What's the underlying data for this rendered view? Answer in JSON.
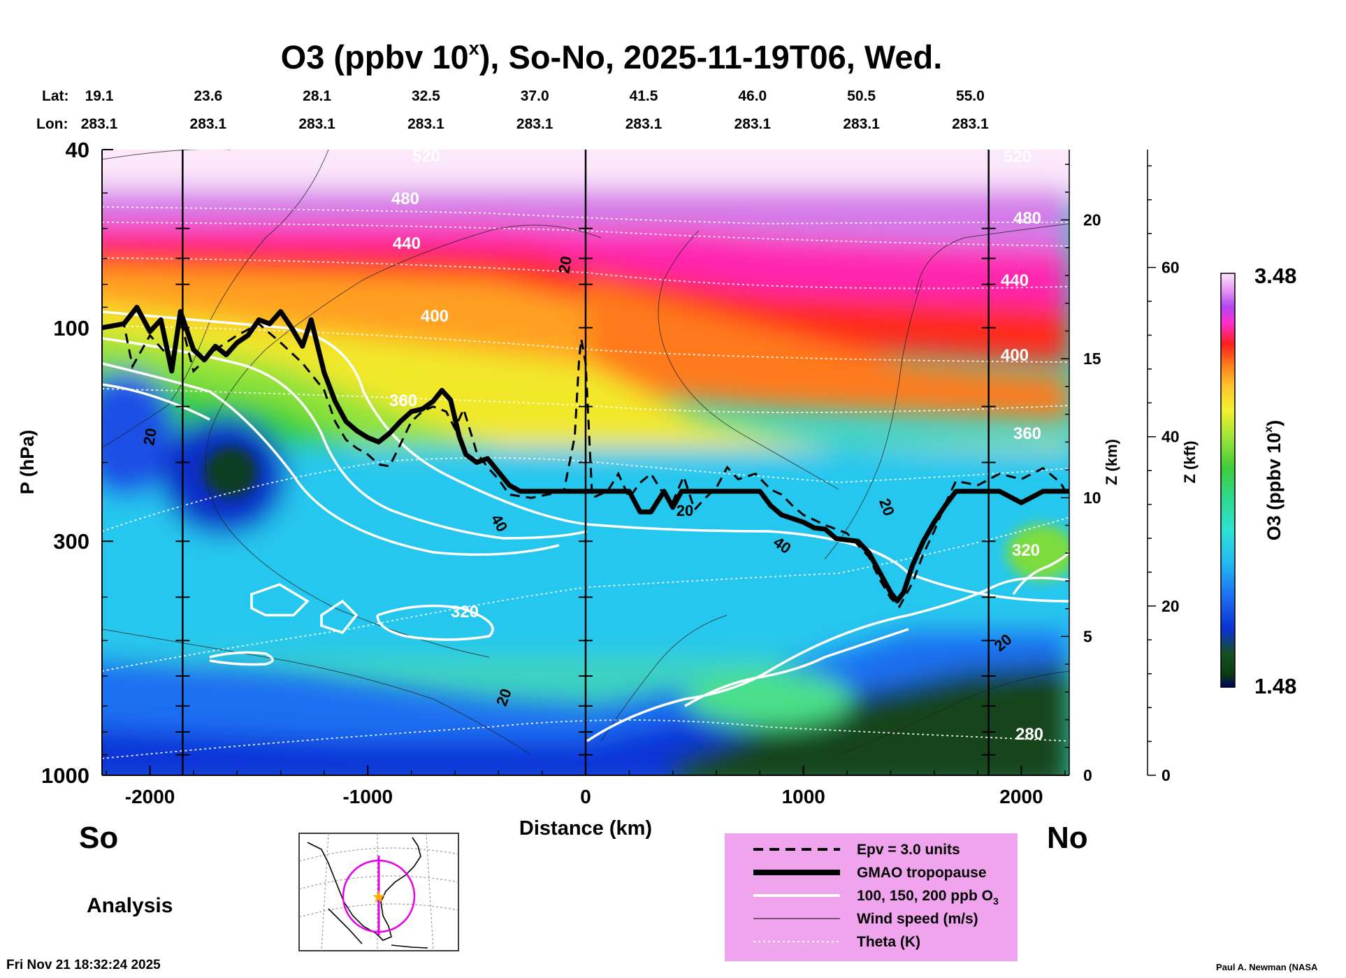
{
  "chart_data": {
    "type": "heatmap",
    "title": "O3 (ppbv 10",
    "title_sup": "x",
    "title_suffix": "), So-No, 2025-11-19T06, Wed.",
    "lat_label": "Lat:",
    "lon_label": "Lon:",
    "lat_values": [
      "19.1",
      "23.6",
      "28.1",
      "32.5",
      "37.0",
      "41.5",
      "46.0",
      "50.5",
      "55.0"
    ],
    "lon_values": [
      "283.1",
      "283.1",
      "283.1",
      "283.1",
      "283.1",
      "283.1",
      "283.1",
      "283.1",
      "283.1"
    ],
    "xlabel": "Distance (km)",
    "xlim": [
      -2220,
      2220
    ],
    "x_ticks": [
      -2000,
      -1000,
      0,
      1000,
      2000
    ],
    "x_tick_labels": [
      "-2000",
      "-1000",
      "0",
      "1000",
      "2000"
    ],
    "ylabel": "P (hPa)",
    "ylim": [
      1000,
      40
    ],
    "y_scale": "log",
    "y_ticks": [
      40,
      100,
      300,
      1000
    ],
    "y_tick_labels": [
      "40",
      "100",
      "300",
      "1000"
    ],
    "z_km_label": "Z (km)",
    "z_km_ticks": [
      "0",
      "5",
      "10",
      "15",
      "20"
    ],
    "z_kft_label": "Z (kft)",
    "z_kft_ticks": [
      "0",
      "20",
      "40",
      "60"
    ],
    "left_end_label": "So",
    "right_end_label": "No",
    "analysis_label": "Analysis",
    "colorbar": {
      "label": "O3 (ppbv 10",
      "label_sup": "x",
      "label_suffix": ")",
      "max_label": "3.48",
      "min_label": "1.48",
      "min": 1.48,
      "max": 3.48
    },
    "theta_labels": [
      "520",
      "480",
      "440",
      "400",
      "360",
      "320",
      "280",
      "520",
      "480",
      "440",
      "400",
      "360",
      "320"
    ],
    "wind_labels": [
      "20",
      "20",
      "40",
      "20",
      "20",
      "40",
      "20",
      "20"
    ],
    "tropopause_hpa": [
      [
        -2220,
        100
      ],
      [
        -2120,
        98
      ],
      [
        -2060,
        90
      ],
      [
        -2000,
        102
      ],
      [
        -1950,
        96
      ],
      [
        -1900,
        125
      ],
      [
        -1860,
        92
      ],
      [
        -1800,
        112
      ],
      [
        -1750,
        118
      ],
      [
        -1700,
        110
      ],
      [
        -1650,
        115
      ],
      [
        -1600,
        108
      ],
      [
        -1550,
        104
      ],
      [
        -1500,
        96
      ],
      [
        -1450,
        98
      ],
      [
        -1400,
        92
      ],
      [
        -1350,
        100
      ],
      [
        -1300,
        110
      ],
      [
        -1260,
        96
      ],
      [
        -1200,
        126
      ],
      [
        -1150,
        146
      ],
      [
        -1100,
        162
      ],
      [
        -1050,
        170
      ],
      [
        -1000,
        176
      ],
      [
        -950,
        180
      ],
      [
        -900,
        172
      ],
      [
        -850,
        162
      ],
      [
        -800,
        154
      ],
      [
        -750,
        152
      ],
      [
        -700,
        146
      ],
      [
        -660,
        138
      ],
      [
        -620,
        145
      ],
      [
        -580,
        175
      ],
      [
        -550,
        192
      ],
      [
        -500,
        200
      ],
      [
        -450,
        196
      ],
      [
        -400,
        210
      ],
      [
        -350,
        225
      ],
      [
        -300,
        232
      ],
      [
        -200,
        232
      ],
      [
        0,
        232
      ],
      [
        100,
        232
      ],
      [
        200,
        232
      ],
      [
        250,
        258
      ],
      [
        300,
        258
      ],
      [
        360,
        232
      ],
      [
        400,
        252
      ],
      [
        440,
        232
      ],
      [
        600,
        232
      ],
      [
        800,
        232
      ],
      [
        850,
        250
      ],
      [
        900,
        262
      ],
      [
        1000,
        272
      ],
      [
        1050,
        280
      ],
      [
        1100,
        282
      ],
      [
        1150,
        296
      ],
      [
        1200,
        298
      ],
      [
        1250,
        300
      ],
      [
        1300,
        318
      ],
      [
        1350,
        352
      ],
      [
        1400,
        390
      ],
      [
        1430,
        408
      ],
      [
        1460,
        390
      ],
      [
        1500,
        340
      ],
      [
        1550,
        300
      ],
      [
        1600,
        272
      ],
      [
        1650,
        250
      ],
      [
        1700,
        232
      ],
      [
        1900,
        232
      ],
      [
        2000,
        246
      ],
      [
        2100,
        232
      ],
      [
        2220,
        232
      ]
    ],
    "epv_hpa": [
      [
        -2220,
        100
      ],
      [
        -2120,
        98
      ],
      [
        -2080,
        122
      ],
      [
        -2000,
        104
      ],
      [
        -1900,
        118
      ],
      [
        -1860,
        96
      ],
      [
        -1800,
        125
      ],
      [
        -1700,
        112
      ],
      [
        -1600,
        104
      ],
      [
        -1500,
        98
      ],
      [
        -1400,
        108
      ],
      [
        -1300,
        120
      ],
      [
        -1200,
        138
      ],
      [
        -1150,
        162
      ],
      [
        -1100,
        178
      ],
      [
        -1050,
        186
      ],
      [
        -1000,
        192
      ],
      [
        -950,
        202
      ],
      [
        -900,
        204
      ],
      [
        -850,
        182
      ],
      [
        -800,
        162
      ],
      [
        -750,
        154
      ],
      [
        -700,
        150
      ],
      [
        -640,
        154
      ],
      [
        -600,
        168
      ],
      [
        -560,
        152
      ],
      [
        -500,
        190
      ],
      [
        -450,
        205
      ],
      [
        -400,
        218
      ],
      [
        -350,
        236
      ],
      [
        -250,
        240
      ],
      [
        -100,
        232
      ],
      [
        -50,
        175
      ],
      [
        -30,
        118
      ],
      [
        -20,
        106
      ],
      [
        0,
        120
      ],
      [
        30,
        240
      ],
      [
        100,
        232
      ],
      [
        150,
        212
      ],
      [
        200,
        240
      ],
      [
        250,
        222
      ],
      [
        300,
        212
      ],
      [
        350,
        232
      ],
      [
        400,
        245
      ],
      [
        450,
        215
      ],
      [
        500,
        255
      ],
      [
        550,
        240
      ],
      [
        600,
        228
      ],
      [
        650,
        205
      ],
      [
        700,
        218
      ],
      [
        780,
        212
      ],
      [
        850,
        230
      ],
      [
        900,
        236
      ],
      [
        950,
        250
      ],
      [
        1000,
        262
      ],
      [
        1100,
        276
      ],
      [
        1200,
        288
      ],
      [
        1300,
        325
      ],
      [
        1350,
        365
      ],
      [
        1400,
        402
      ],
      [
        1440,
        420
      ],
      [
        1500,
        372
      ],
      [
        1550,
        320
      ],
      [
        1600,
        285
      ],
      [
        1650,
        248
      ],
      [
        1700,
        220
      ],
      [
        1800,
        225
      ],
      [
        1900,
        212
      ],
      [
        2000,
        218
      ],
      [
        2100,
        206
      ],
      [
        2180,
        222
      ],
      [
        2220,
        240
      ]
    ]
  },
  "legend": {
    "items": [
      {
        "text": "Epv = 3.0 units",
        "style": "dashed"
      },
      {
        "text": "GMAO tropopause",
        "style": "thick"
      },
      {
        "text": "100, 150, 200 ppb O",
        "sub": "3",
        "style": "white"
      },
      {
        "text": "Wind speed (m/s)",
        "style": "thin"
      },
      {
        "text": "Theta (K)",
        "style": "dotted"
      }
    ],
    "background": "#f0a4ee"
  },
  "map_inset": {
    "track_color": "#e800e8",
    "marker_color": "#ffb000"
  },
  "footer": {
    "timestamp": "Fri Nov 21 18:32:24 2025",
    "credit": "Paul A. Newman (NASA"
  }
}
